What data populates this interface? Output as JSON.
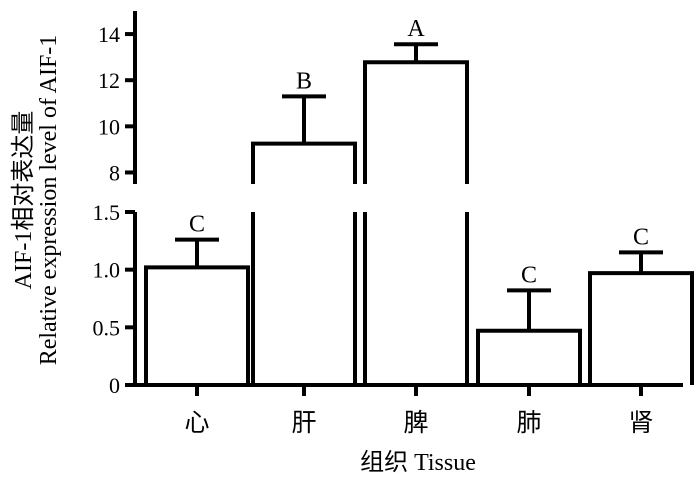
{
  "chart_data": {
    "type": "bar",
    "categories": [
      "心",
      "肝",
      "脾",
      "肺",
      "肾"
    ],
    "values": [
      1.02,
      9.25,
      12.78,
      0.47,
      0.97
    ],
    "errors": [
      0.24,
      2.05,
      0.78,
      0.35,
      0.18
    ],
    "significance": [
      "C",
      "B",
      "A",
      "C",
      "C"
    ],
    "xlabel": "组织 Tissue",
    "ylabel_line1": "AIF-1相对表达量",
    "ylabel_line2": "Relative expression level of AIF-1",
    "axis_break": true,
    "lower_segment": {
      "ylim": [
        0,
        1.5
      ],
      "ticks": [
        "0",
        "0.5",
        "1.0",
        "1.5"
      ]
    },
    "upper_segment": {
      "ylim": [
        7.5,
        15
      ],
      "ticks": [
        "8",
        "10",
        "12",
        "14"
      ]
    },
    "grid": false,
    "legend": "none"
  }
}
